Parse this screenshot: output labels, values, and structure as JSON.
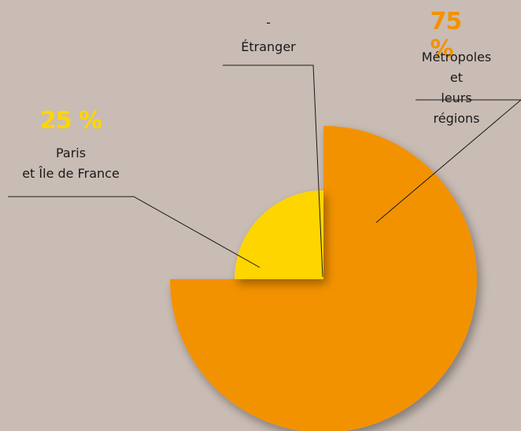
{
  "chart_data": {
    "type": "pie",
    "categories": [
      "Métropoles et\nleurs régions",
      "Paris\net Île de France",
      "Étranger"
    ],
    "values": [
      75,
      25,
      null
    ],
    "value_labels": [
      "75 %",
      "25 %",
      "-"
    ],
    "colors": [
      "#f39200",
      "#ffd500",
      "#888888"
    ]
  }
}
